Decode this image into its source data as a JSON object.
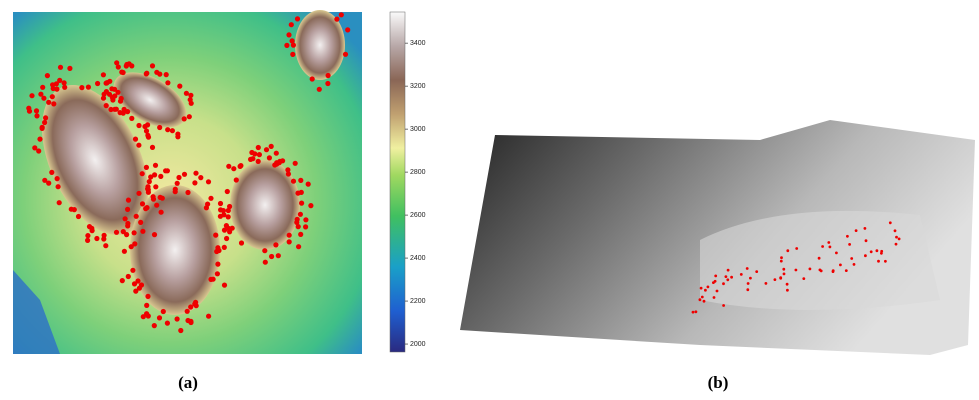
{
  "panels": [
    {
      "caption": "(a)"
    },
    {
      "caption": "(b)"
    }
  ],
  "colorbar": {
    "lim": [
      1963,
      3545
    ],
    "ticks": [
      2000,
      2200,
      2400,
      2600,
      2800,
      3000,
      3200,
      3400
    ]
  }
}
